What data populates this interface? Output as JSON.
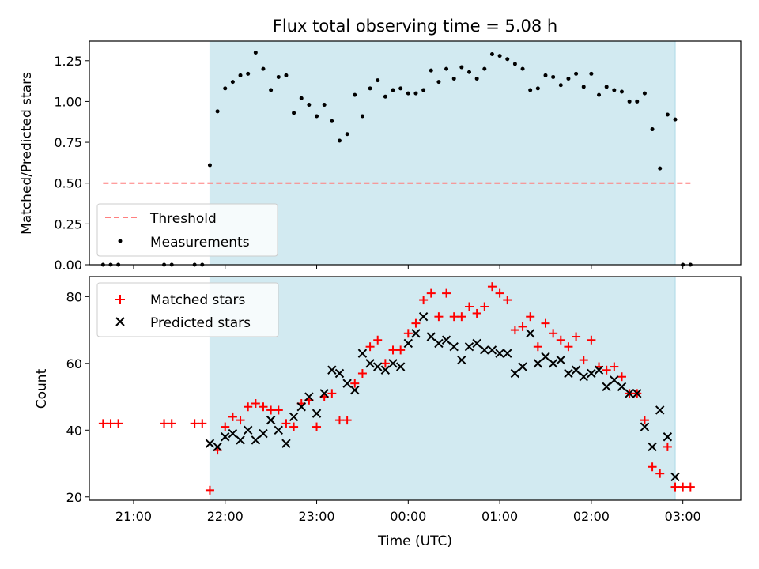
{
  "chart_data": {
    "type": "scatter",
    "title": "Flux total observing time = 5.08 h",
    "xlabel": "Time (UTC)",
    "xticks": [
      "21:00",
      "22:00",
      "23:00",
      "00:00",
      "01:00",
      "02:00",
      "03:00"
    ],
    "shaded_interval": [
      "21:50",
      "02:55"
    ],
    "shade_color": "#add8e6",
    "panels": [
      {
        "ylabel": "Matched/Predicted stars",
        "ylim": [
          0,
          1.37
        ],
        "yticks": [
          "0.00",
          "0.25",
          "0.50",
          "0.75",
          "1.00",
          "1.25"
        ],
        "legend_position": "lower-left",
        "series": [
          {
            "name": "Threshold",
            "kind": "dashed-line",
            "color": "#ff7f7f",
            "y": 0.5,
            "x_range": [
              "20:40",
              "03:05"
            ]
          },
          {
            "name": "Measurements",
            "kind": "dots",
            "color": "#000000",
            "points": [
              [
                "20:40",
                0
              ],
              [
                "20:45",
                0
              ],
              [
                "20:50",
                0
              ],
              [
                "21:20",
                0
              ],
              [
                "21:25",
                0
              ],
              [
                "21:40",
                0
              ],
              [
                "21:45",
                0
              ],
              [
                "21:50",
                0.61
              ],
              [
                "21:55",
                0.94
              ],
              [
                "22:00",
                1.08
              ],
              [
                "22:05",
                1.12
              ],
              [
                "22:10",
                1.16
              ],
              [
                "22:15",
                1.17
              ],
              [
                "22:20",
                1.3
              ],
              [
                "22:25",
                1.2
              ],
              [
                "22:30",
                1.07
              ],
              [
                "22:35",
                1.15
              ],
              [
                "22:40",
                1.16
              ],
              [
                "22:45",
                0.93
              ],
              [
                "22:50",
                1.02
              ],
              [
                "22:55",
                0.98
              ],
              [
                "23:00",
                0.91
              ],
              [
                "23:05",
                0.98
              ],
              [
                "23:10",
                0.88
              ],
              [
                "23:15",
                0.76
              ],
              [
                "23:20",
                0.8
              ],
              [
                "23:25",
                1.04
              ],
              [
                "23:30",
                0.91
              ],
              [
                "23:35",
                1.08
              ],
              [
                "23:40",
                1.13
              ],
              [
                "23:45",
                1.03
              ],
              [
                "23:50",
                1.07
              ],
              [
                "23:55",
                1.08
              ],
              [
                "00:00",
                1.05
              ],
              [
                "00:05",
                1.05
              ],
              [
                "00:10",
                1.07
              ],
              [
                "00:15",
                1.19
              ],
              [
                "00:20",
                1.12
              ],
              [
                "00:25",
                1.2
              ],
              [
                "00:30",
                1.14
              ],
              [
                "00:35",
                1.21
              ],
              [
                "00:40",
                1.18
              ],
              [
                "00:45",
                1.14
              ],
              [
                "00:50",
                1.2
              ],
              [
                "00:55",
                1.29
              ],
              [
                "01:00",
                1.28
              ],
              [
                "01:05",
                1.26
              ],
              [
                "01:10",
                1.23
              ],
              [
                "01:15",
                1.2
              ],
              [
                "01:20",
                1.07
              ],
              [
                "01:25",
                1.08
              ],
              [
                "01:30",
                1.16
              ],
              [
                "01:35",
                1.15
              ],
              [
                "01:40",
                1.1
              ],
              [
                "01:45",
                1.14
              ],
              [
                "01:50",
                1.17
              ],
              [
                "01:55",
                1.09
              ],
              [
                "02:00",
                1.17
              ],
              [
                "02:05",
                1.04
              ],
              [
                "02:10",
                1.09
              ],
              [
                "02:15",
                1.07
              ],
              [
                "02:20",
                1.06
              ],
              [
                "02:25",
                1.0
              ],
              [
                "02:30",
                1.0
              ],
              [
                "02:35",
                1.05
              ],
              [
                "02:40",
                0.83
              ],
              [
                "02:45",
                0.59
              ],
              [
                "02:50",
                0.92
              ],
              [
                "02:55",
                0.89
              ],
              [
                "03:00",
                0
              ],
              [
                "03:05",
                0
              ]
            ]
          }
        ]
      },
      {
        "ylabel": "Count",
        "ylim": [
          19,
          86
        ],
        "yticks": [
          "20",
          "40",
          "60",
          "80"
        ],
        "legend_position": "upper-left",
        "series": [
          {
            "name": "Matched stars",
            "marker": "plus",
            "color": "#ff0000",
            "points": [
              [
                "20:40",
                42
              ],
              [
                "20:45",
                42
              ],
              [
                "20:50",
                42
              ],
              [
                "21:20",
                42
              ],
              [
                "21:25",
                42
              ],
              [
                "21:40",
                42
              ],
              [
                "21:45",
                42
              ],
              [
                "21:50",
                22
              ],
              [
                "21:55",
                34
              ],
              [
                "22:00",
                41
              ],
              [
                "22:05",
                44
              ],
              [
                "22:10",
                43
              ],
              [
                "22:15",
                47
              ],
              [
                "22:20",
                48
              ],
              [
                "22:25",
                47
              ],
              [
                "22:30",
                46
              ],
              [
                "22:35",
                46
              ],
              [
                "22:40",
                42
              ],
              [
                "22:45",
                41
              ],
              [
                "22:50",
                48
              ],
              [
                "22:55",
                49
              ],
              [
                "23:00",
                41
              ],
              [
                "23:05",
                50
              ],
              [
                "23:10",
                51
              ],
              [
                "23:15",
                43
              ],
              [
                "23:20",
                43
              ],
              [
                "23:25",
                54
              ],
              [
                "23:30",
                57
              ],
              [
                "23:35",
                65
              ],
              [
                "23:40",
                67
              ],
              [
                "23:45",
                60
              ],
              [
                "23:50",
                64
              ],
              [
                "23:55",
                64
              ],
              [
                "00:00",
                69
              ],
              [
                "00:05",
                72
              ],
              [
                "00:10",
                79
              ],
              [
                "00:15",
                81
              ],
              [
                "00:20",
                74
              ],
              [
                "00:25",
                81
              ],
              [
                "00:30",
                74
              ],
              [
                "00:35",
                74
              ],
              [
                "00:40",
                77
              ],
              [
                "00:45",
                75
              ],
              [
                "00:50",
                77
              ],
              [
                "00:55",
                83
              ],
              [
                "01:00",
                81
              ],
              [
                "01:05",
                79
              ],
              [
                "01:10",
                70
              ],
              [
                "01:15",
                71
              ],
              [
                "01:20",
                74
              ],
              [
                "01:25",
                65
              ],
              [
                "01:30",
                72
              ],
              [
                "01:35",
                69
              ],
              [
                "01:40",
                67
              ],
              [
                "01:45",
                65
              ],
              [
                "01:50",
                68
              ],
              [
                "01:55",
                61
              ],
              [
                "02:00",
                67
              ],
              [
                "02:05",
                59
              ],
              [
                "02:10",
                58
              ],
              [
                "02:15",
                59
              ],
              [
                "02:20",
                56
              ],
              [
                "02:25",
                51
              ],
              [
                "02:30",
                51
              ],
              [
                "02:35",
                43
              ],
              [
                "02:40",
                29
              ],
              [
                "02:45",
                27
              ],
              [
                "02:50",
                35
              ],
              [
                "02:55",
                23
              ],
              [
                "03:00",
                23
              ],
              [
                "03:05",
                23
              ]
            ]
          },
          {
            "name": "Predicted stars",
            "marker": "x",
            "color": "#000000",
            "points": [
              [
                "21:50",
                36
              ],
              [
                "21:55",
                35
              ],
              [
                "22:00",
                38
              ],
              [
                "22:05",
                39
              ],
              [
                "22:10",
                37
              ],
              [
                "22:15",
                40
              ],
              [
                "22:20",
                37
              ],
              [
                "22:25",
                39
              ],
              [
                "22:30",
                43
              ],
              [
                "22:35",
                40
              ],
              [
                "22:40",
                36
              ],
              [
                "22:45",
                44
              ],
              [
                "22:50",
                47
              ],
              [
                "22:55",
                50
              ],
              [
                "23:00",
                45
              ],
              [
                "23:05",
                51
              ],
              [
                "23:10",
                58
              ],
              [
                "23:15",
                57
              ],
              [
                "23:20",
                54
              ],
              [
                "23:25",
                52
              ],
              [
                "23:30",
                63
              ],
              [
                "23:35",
                60
              ],
              [
                "23:40",
                59
              ],
              [
                "23:45",
                58
              ],
              [
                "23:50",
                60
              ],
              [
                "23:55",
                59
              ],
              [
                "00:00",
                66
              ],
              [
                "00:05",
                69
              ],
              [
                "00:10",
                74
              ],
              [
                "00:15",
                68
              ],
              [
                "00:20",
                66
              ],
              [
                "00:25",
                67
              ],
              [
                "00:30",
                65
              ],
              [
                "00:35",
                61
              ],
              [
                "00:40",
                65
              ],
              [
                "00:45",
                66
              ],
              [
                "00:50",
                64
              ],
              [
                "00:55",
                64
              ],
              [
                "01:00",
                63
              ],
              [
                "01:05",
                63
              ],
              [
                "01:10",
                57
              ],
              [
                "01:15",
                59
              ],
              [
                "01:20",
                69
              ],
              [
                "01:25",
                60
              ],
              [
                "01:30",
                62
              ],
              [
                "01:35",
                60
              ],
              [
                "01:40",
                61
              ],
              [
                "01:45",
                57
              ],
              [
                "01:50",
                58
              ],
              [
                "01:55",
                56
              ],
              [
                "02:00",
                57
              ],
              [
                "02:05",
                58
              ],
              [
                "02:10",
                53
              ],
              [
                "02:15",
                55
              ],
              [
                "02:20",
                53
              ],
              [
                "02:25",
                51
              ],
              [
                "02:30",
                51
              ],
              [
                "02:35",
                41
              ],
              [
                "02:40",
                35
              ],
              [
                "02:45",
                46
              ],
              [
                "02:50",
                38
              ],
              [
                "02:55",
                26
              ]
            ]
          }
        ]
      }
    ]
  }
}
